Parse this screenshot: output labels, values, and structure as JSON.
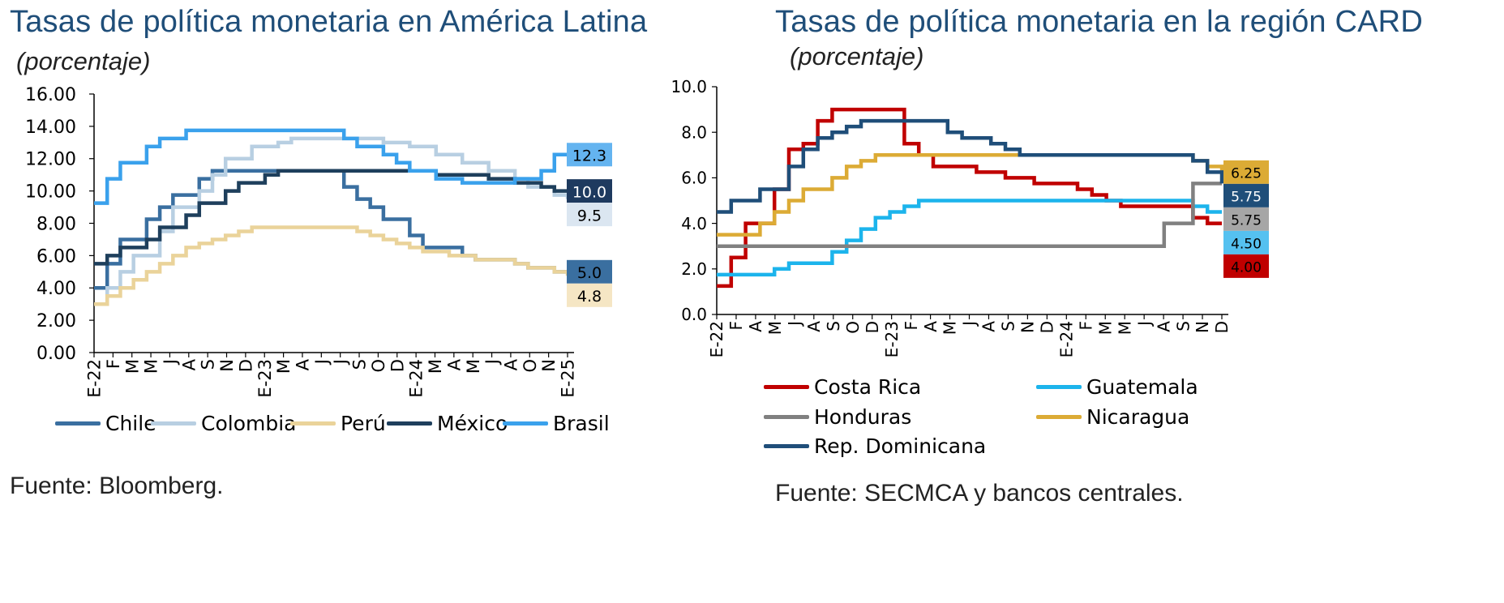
{
  "chart_data": [
    {
      "type": "line",
      "title": "Tasas de política monetaria en América Latina",
      "subtitle": "(porcentaje)",
      "source": "Fuente: Bloomberg.",
      "ylim": [
        0,
        16
      ],
      "yticks": [
        "0.00",
        "2.00",
        "4.00",
        "6.00",
        "8.00",
        "10.00",
        "12.00",
        "14.00",
        "16.00"
      ],
      "xticks": [
        "E-22",
        "F",
        "M",
        "M",
        "J",
        "A",
        "S",
        "N",
        "D",
        "E-23",
        "M",
        "A",
        "J",
        "J",
        "S",
        "O",
        "D",
        "E-24",
        "M",
        "A",
        "M",
        "J",
        "A",
        "O",
        "N",
        "E-25"
      ],
      "grid": false,
      "legend_position": "bottom",
      "colors": {
        "Chile": "#3a6fa0",
        "Colombia": "#b8cfe2",
        "Perú": "#ead39a",
        "México": "#1e3f5c",
        "Brasil": "#3aa1ec"
      },
      "x": [
        "E-22",
        "F-22",
        "M-22",
        "A-22",
        "M-22",
        "J-22",
        "J-22",
        "A-22",
        "S-22",
        "O-22",
        "N-22",
        "D-22",
        "E-23",
        "F-23",
        "M-23",
        "A-23",
        "M-23",
        "J-23",
        "J-23",
        "A-23",
        "S-23",
        "O-23",
        "N-23",
        "D-23",
        "E-24",
        "F-24",
        "M-24",
        "A-24",
        "M-24",
        "J-24",
        "J-24",
        "A-24",
        "S-24",
        "O-24",
        "N-24",
        "D-24",
        "E-25"
      ],
      "series": [
        {
          "name": "Chile",
          "values": [
            4.0,
            5.5,
            7.0,
            7.0,
            8.25,
            9.0,
            9.75,
            9.75,
            10.75,
            11.25,
            11.25,
            11.25,
            11.25,
            11.25,
            11.25,
            11.25,
            11.25,
            11.25,
            11.25,
            10.25,
            9.5,
            9.0,
            8.25,
            8.25,
            7.25,
            6.5,
            6.5,
            6.5,
            6.0,
            5.75,
            5.75,
            5.75,
            5.5,
            5.25,
            5.25,
            5.0,
            5.0
          ]
        },
        {
          "name": "Colombia",
          "values": [
            3.0,
            4.0,
            5.0,
            6.0,
            6.0,
            7.5,
            9.0,
            9.0,
            10.0,
            11.0,
            12.0,
            12.0,
            12.75,
            12.75,
            13.0,
            13.25,
            13.25,
            13.25,
            13.25,
            13.25,
            13.25,
            13.25,
            13.0,
            13.0,
            12.75,
            12.75,
            12.25,
            12.25,
            11.75,
            11.75,
            11.25,
            11.25,
            10.75,
            10.25,
            10.25,
            9.75,
            9.5
          ]
        },
        {
          "name": "Perú",
          "values": [
            3.0,
            3.5,
            4.0,
            4.5,
            5.0,
            5.5,
            6.0,
            6.5,
            6.75,
            7.0,
            7.25,
            7.5,
            7.75,
            7.75,
            7.75,
            7.75,
            7.75,
            7.75,
            7.75,
            7.75,
            7.5,
            7.25,
            7.0,
            6.75,
            6.5,
            6.25,
            6.25,
            6.0,
            6.0,
            5.75,
            5.75,
            5.75,
            5.5,
            5.25,
            5.25,
            5.0,
            4.75
          ]
        },
        {
          "name": "México",
          "values": [
            5.5,
            6.0,
            6.5,
            6.5,
            7.0,
            7.75,
            7.75,
            8.5,
            9.25,
            9.25,
            10.0,
            10.5,
            10.5,
            11.0,
            11.25,
            11.25,
            11.25,
            11.25,
            11.25,
            11.25,
            11.25,
            11.25,
            11.25,
            11.25,
            11.25,
            11.25,
            11.0,
            11.0,
            11.0,
            11.0,
            10.75,
            10.75,
            10.5,
            10.5,
            10.25,
            10.0,
            10.0
          ]
        },
        {
          "name": "Brasil",
          "values": [
            9.25,
            10.75,
            11.75,
            11.75,
            12.75,
            13.25,
            13.25,
            13.75,
            13.75,
            13.75,
            13.75,
            13.75,
            13.75,
            13.75,
            13.75,
            13.75,
            13.75,
            13.75,
            13.75,
            13.25,
            12.75,
            12.75,
            12.25,
            11.75,
            11.25,
            11.25,
            10.75,
            10.75,
            10.5,
            10.5,
            10.5,
            10.5,
            10.75,
            10.75,
            11.25,
            12.25,
            12.25
          ]
        }
      ],
      "end_labels": [
        {
          "series": "Brasil",
          "text": "12.3",
          "bg": "#64b4f0",
          "fg": "#000000"
        },
        {
          "series": "México",
          "text": "10.0",
          "bg": "#1e3a5f",
          "fg": "#ffffff"
        },
        {
          "series": "Colombia",
          "text": "9.5",
          "bg": "#dbe6f1",
          "fg": "#000000"
        },
        {
          "series": "Chile",
          "text": "5.0",
          "bg": "#3a6fa0",
          "fg": "#000000"
        },
        {
          "series": "Perú",
          "text": "4.8",
          "bg": "#f5e6c4",
          "fg": "#000000"
        }
      ]
    },
    {
      "type": "line",
      "title": "Tasas de política monetaria en la región CARD",
      "subtitle": "(porcentaje)",
      "source": "Fuente: SECMCA y bancos centrales.",
      "ylim": [
        0,
        10
      ],
      "yticks": [
        "0.0",
        "2.0",
        "4.0",
        "6.0",
        "8.0",
        "10.0"
      ],
      "xticks": [
        "E-22",
        "F",
        "A",
        "M",
        "J",
        "A",
        "S",
        "O",
        "D",
        "E-23",
        "F",
        "A",
        "M",
        "J",
        "A",
        "S",
        "N",
        "D",
        "E-24",
        "F",
        "M",
        "M",
        "J",
        "A",
        "S",
        "N",
        "D"
      ],
      "grid": false,
      "legend_position": "bottom",
      "colors": {
        "Costa Rica": "#c00000",
        "Guatemala": "#1cb4ec",
        "Honduras": "#808080",
        "Nicaragua": "#dcab35",
        "Rep. Dominicana": "#1f4e79"
      },
      "x": [
        "E-22",
        "F-22",
        "M-22",
        "A-22",
        "M-22",
        "J-22",
        "J-22",
        "A-22",
        "S-22",
        "O-22",
        "N-22",
        "D-22",
        "E-23",
        "F-23",
        "M-23",
        "A-23",
        "M-23",
        "J-23",
        "J-23",
        "A-23",
        "S-23",
        "O-23",
        "N-23",
        "D-23",
        "E-24",
        "F-24",
        "M-24",
        "A-24",
        "M-24",
        "J-24",
        "J-24",
        "A-24",
        "S-24",
        "O-24",
        "N-24",
        "D-24"
      ],
      "series": [
        {
          "name": "Costa Rica",
          "values": [
            1.25,
            2.5,
            4.0,
            4.0,
            5.5,
            7.25,
            7.5,
            8.5,
            9.0,
            9.0,
            9.0,
            9.0,
            9.0,
            7.5,
            7.0,
            6.5,
            6.5,
            6.5,
            6.25,
            6.25,
            6.0,
            6.0,
            5.75,
            5.75,
            5.75,
            5.5,
            5.25,
            5.0,
            4.75,
            4.75,
            4.75,
            4.75,
            4.75,
            4.25,
            4.0,
            4.0
          ]
        },
        {
          "name": "Guatemala",
          "values": [
            1.75,
            1.75,
            1.75,
            1.75,
            2.0,
            2.25,
            2.25,
            2.25,
            2.75,
            3.25,
            3.75,
            4.25,
            4.5,
            4.75,
            5.0,
            5.0,
            5.0,
            5.0,
            5.0,
            5.0,
            5.0,
            5.0,
            5.0,
            5.0,
            5.0,
            5.0,
            5.0,
            5.0,
            5.0,
            5.0,
            5.0,
            5.0,
            5.0,
            4.75,
            4.5,
            4.5
          ]
        },
        {
          "name": "Honduras",
          "values": [
            3.0,
            3.0,
            3.0,
            3.0,
            3.0,
            3.0,
            3.0,
            3.0,
            3.0,
            3.0,
            3.0,
            3.0,
            3.0,
            3.0,
            3.0,
            3.0,
            3.0,
            3.0,
            3.0,
            3.0,
            3.0,
            3.0,
            3.0,
            3.0,
            3.0,
            3.0,
            3.0,
            3.0,
            3.0,
            3.0,
            3.0,
            4.0,
            4.0,
            5.75,
            5.75,
            5.75
          ]
        },
        {
          "name": "Nicaragua",
          "values": [
            3.5,
            3.5,
            3.5,
            4.0,
            4.5,
            5.0,
            5.5,
            5.5,
            6.0,
            6.5,
            6.75,
            7.0,
            7.0,
            7.0,
            7.0,
            7.0,
            7.0,
            7.0,
            7.0,
            7.0,
            7.0,
            7.0,
            7.0,
            7.0,
            7.0,
            7.0,
            7.0,
            7.0,
            7.0,
            7.0,
            7.0,
            7.0,
            7.0,
            6.75,
            6.5,
            6.25
          ]
        },
        {
          "name": "Rep. Dominicana",
          "values": [
            4.5,
            5.0,
            5.0,
            5.5,
            5.5,
            6.5,
            7.25,
            7.75,
            8.0,
            8.25,
            8.5,
            8.5,
            8.5,
            8.5,
            8.5,
            8.5,
            8.0,
            7.75,
            7.75,
            7.5,
            7.25,
            7.0,
            7.0,
            7.0,
            7.0,
            7.0,
            7.0,
            7.0,
            7.0,
            7.0,
            7.0,
            7.0,
            7.0,
            6.75,
            6.25,
            5.75
          ]
        }
      ],
      "end_labels": [
        {
          "series": "Nicaragua",
          "text": "6.25",
          "bg": "#dcab35",
          "fg": "#000000"
        },
        {
          "series": "Rep. Dominicana",
          "text": "5.75",
          "bg": "#1f4e79",
          "fg": "#ffffff"
        },
        {
          "series": "Honduras",
          "text": "5.75",
          "bg": "#a6a6a6",
          "fg": "#000000"
        },
        {
          "series": "Guatemala",
          "text": "4.50",
          "bg": "#55c1f0",
          "fg": "#000000"
        },
        {
          "series": "Costa Rica",
          "text": "4.00",
          "bg": "#c00000",
          "fg": "#000000"
        }
      ]
    }
  ]
}
